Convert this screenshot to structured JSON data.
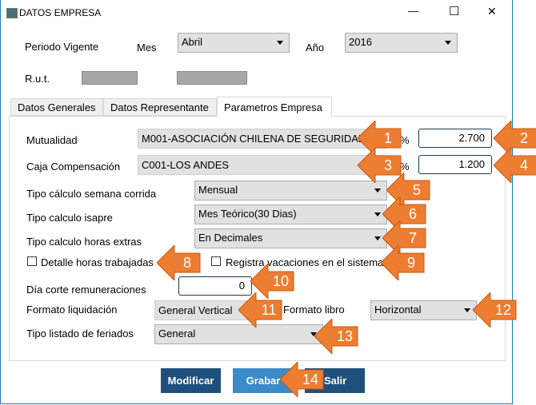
{
  "window": {
    "title": "DATOS EMPRESA",
    "minimize": "—",
    "maximize": "☐",
    "close": "✕"
  },
  "header": {
    "periodo_label": "Periodo Vigente",
    "mes_label": "Mes",
    "mes_value": "Abril",
    "anio_label": "Año",
    "anio_value": "2016",
    "rut_label": "R.u.t."
  },
  "tabs": [
    {
      "label": "Datos Generales"
    },
    {
      "label": "Datos Representante"
    },
    {
      "label": "Parametros Empresa",
      "active": true
    }
  ],
  "form": {
    "mutualidad_label": "Mutualidad",
    "mutualidad_value": "M001-ASOCIACIÓN CHILENA DE SEGURIDAD",
    "mutualidad_pct_symbol": "%",
    "mutualidad_pct": "2.700",
    "caja_label": "Caja Compensación",
    "caja_value": "C001-LOS ANDES",
    "caja_pct_symbol": "%",
    "caja_pct": "1.200",
    "semana_label": "Tipo cálculo semana corrida",
    "semana_value": "Mensual",
    "isapre_label": "Tipo calculo isapre",
    "isapre_value": "Mes Teórico(30 Dias)",
    "horas_label": "Tipo calculo horas extras",
    "horas_value": "En Decimales",
    "detalle_label": "Detalle horas trabajadas",
    "detalle_checked": false,
    "vacaciones_label": "Registra vacaciones en el sistema",
    "vacaciones_checked": false,
    "dia_corte_label": "Día corte remuneraciones",
    "dia_corte_value": "0",
    "formato_liq_label": "Formato liquidación",
    "formato_liq_value": "General Vertical",
    "formato_libro_label": "Formato libro",
    "formato_libro_value": "Horizontal",
    "feriados_label": "Tipo listado de feriados",
    "feriados_value": "General"
  },
  "buttons": {
    "modificar": "Modificar",
    "grabar": "Grabar",
    "salir": "Salir"
  },
  "callouts": [
    "1",
    "2",
    "3",
    "4",
    "5",
    "6",
    "7",
    "8",
    "9",
    "10",
    "11",
    "12",
    "13",
    "14"
  ],
  "colors": {
    "callout": "#ed7d31",
    "button_dark": "#1f507c",
    "button_active": "#3b8ac9",
    "window_border": "#1979ca"
  }
}
